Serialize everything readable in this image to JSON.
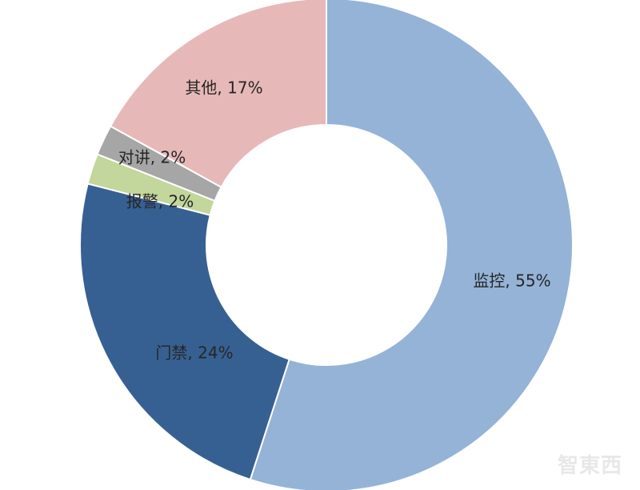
{
  "chart_data": {
    "type": "pie",
    "variant": "donut",
    "start_angle": "12 o'clock",
    "direction": "clockwise",
    "slices": [
      {
        "label": "监控",
        "value": 55,
        "display": "监控, 55%",
        "color": "#95B3D7"
      },
      {
        "label": "门禁",
        "value": 24,
        "display": "门禁, 24%",
        "color": "#376092"
      },
      {
        "label": "报警",
        "value": 2,
        "display": "报警, 2%",
        "color": "#C3D69B"
      },
      {
        "label": "对讲",
        "value": 2,
        "display": "对讲, 2%",
        "color": "#A6A6A6"
      },
      {
        "label": "其他",
        "value": 17,
        "display": "其他, 17%",
        "color": "#E6B9B8"
      }
    ],
    "legend": "none"
  },
  "watermark": "智東西"
}
